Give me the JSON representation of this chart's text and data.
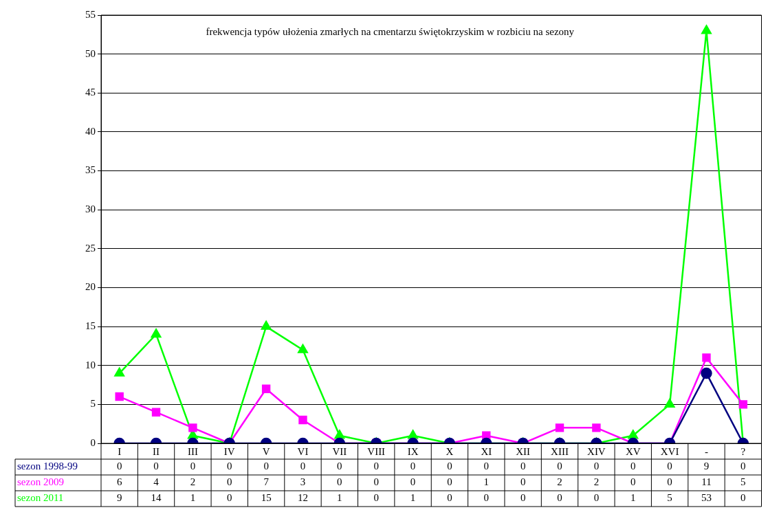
{
  "chart_data": {
    "type": "line",
    "title": "frekwencja typów ułożenia zmarłych na cmentarzu świętokrzyskim w rozbiciu na sezony",
    "categories": [
      "I",
      "II",
      "III",
      "IV",
      "V",
      "VI",
      "VII",
      "VIII",
      "IX",
      "X",
      "XI",
      "XII",
      "XIII",
      "XIV",
      "XV",
      "XVI",
      "-",
      "?"
    ],
    "series": [
      {
        "name": "sezon 1998-99",
        "color": "#000080",
        "marker": "circle",
        "values": [
          0,
          0,
          0,
          0,
          0,
          0,
          0,
          0,
          0,
          0,
          0,
          0,
          0,
          0,
          0,
          0,
          9,
          0
        ]
      },
      {
        "name": "sezon 2009",
        "color": "#ff00ff",
        "marker": "square",
        "values": [
          6,
          4,
          2,
          0,
          7,
          3,
          0,
          0,
          0,
          0,
          1,
          0,
          2,
          2,
          0,
          0,
          11,
          5
        ]
      },
      {
        "name": "sezon 2011",
        "color": "#00ff00",
        "marker": "triangle",
        "values": [
          9,
          14,
          1,
          0,
          15,
          12,
          1,
          0,
          1,
          0,
          0,
          0,
          0,
          0,
          1,
          5,
          53,
          0
        ]
      }
    ],
    "ylim": [
      0,
      55
    ],
    "yticks": [
      0,
      5,
      10,
      15,
      20,
      25,
      30,
      35,
      40,
      45,
      50,
      55
    ],
    "grid": "y",
    "legend": false,
    "data_labels": true,
    "line_style": "solid"
  }
}
